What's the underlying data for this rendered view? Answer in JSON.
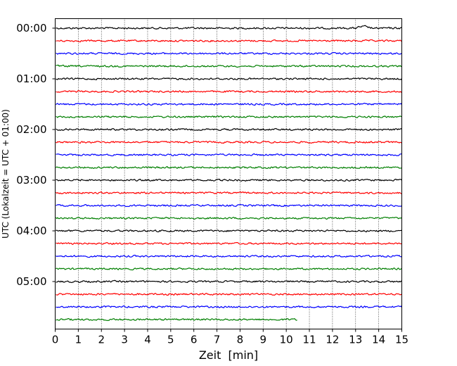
{
  "chart_data": {
    "type": "line",
    "title": "",
    "xlabel": "Zeit  [min]",
    "ylabel": "UTC (Lokalzeit = UTC + 01:00)",
    "xlim": [
      0,
      15
    ],
    "x_ticks": [
      0,
      1,
      2,
      3,
      4,
      5,
      6,
      7,
      8,
      9,
      10,
      11,
      12,
      13,
      14,
      15
    ],
    "y_tick_labels": [
      "00:00",
      "01:00",
      "02:00",
      "03:00",
      "04:00",
      "05:00"
    ],
    "rows_per_hour": 4,
    "minutes_per_row": 15,
    "grid": "vertical dotted lines at each minute",
    "legend": "none",
    "colors": [
      "#000000",
      "#ff0000",
      "#0000ff",
      "#007f00"
    ],
    "rows": [
      {
        "start": "00:00",
        "end_min": 15,
        "color": "#000000"
      },
      {
        "start": "00:15",
        "end_min": 15,
        "color": "#ff0000"
      },
      {
        "start": "00:30",
        "end_min": 15,
        "color": "#0000ff"
      },
      {
        "start": "00:45",
        "end_min": 15,
        "color": "#007f00"
      },
      {
        "start": "01:00",
        "end_min": 15,
        "color": "#000000"
      },
      {
        "start": "01:15",
        "end_min": 15,
        "color": "#ff0000"
      },
      {
        "start": "01:30",
        "end_min": 15,
        "color": "#0000ff"
      },
      {
        "start": "01:45",
        "end_min": 15,
        "color": "#007f00"
      },
      {
        "start": "02:00",
        "end_min": 15,
        "color": "#000000"
      },
      {
        "start": "02:15",
        "end_min": 15,
        "color": "#ff0000"
      },
      {
        "start": "02:30",
        "end_min": 15,
        "color": "#0000ff"
      },
      {
        "start": "02:45",
        "end_min": 15,
        "color": "#007f00"
      },
      {
        "start": "03:00",
        "end_min": 15,
        "color": "#000000"
      },
      {
        "start": "03:15",
        "end_min": 15,
        "color": "#ff0000"
      },
      {
        "start": "03:30",
        "end_min": 15,
        "color": "#0000ff"
      },
      {
        "start": "03:45",
        "end_min": 15,
        "color": "#007f00"
      },
      {
        "start": "04:00",
        "end_min": 15,
        "color": "#000000"
      },
      {
        "start": "04:15",
        "end_min": 15,
        "color": "#ff0000"
      },
      {
        "start": "04:30",
        "end_min": 15,
        "color": "#0000ff"
      },
      {
        "start": "04:45",
        "end_min": 15,
        "color": "#007f00"
      },
      {
        "start": "05:00",
        "end_min": 15,
        "color": "#000000"
      },
      {
        "start": "05:15",
        "end_min": 15,
        "color": "#ff0000"
      },
      {
        "start": "05:30",
        "end_min": 15,
        "color": "#0000ff"
      },
      {
        "start": "05:45",
        "end_min": 10.5,
        "color": "#007f00"
      }
    ]
  }
}
